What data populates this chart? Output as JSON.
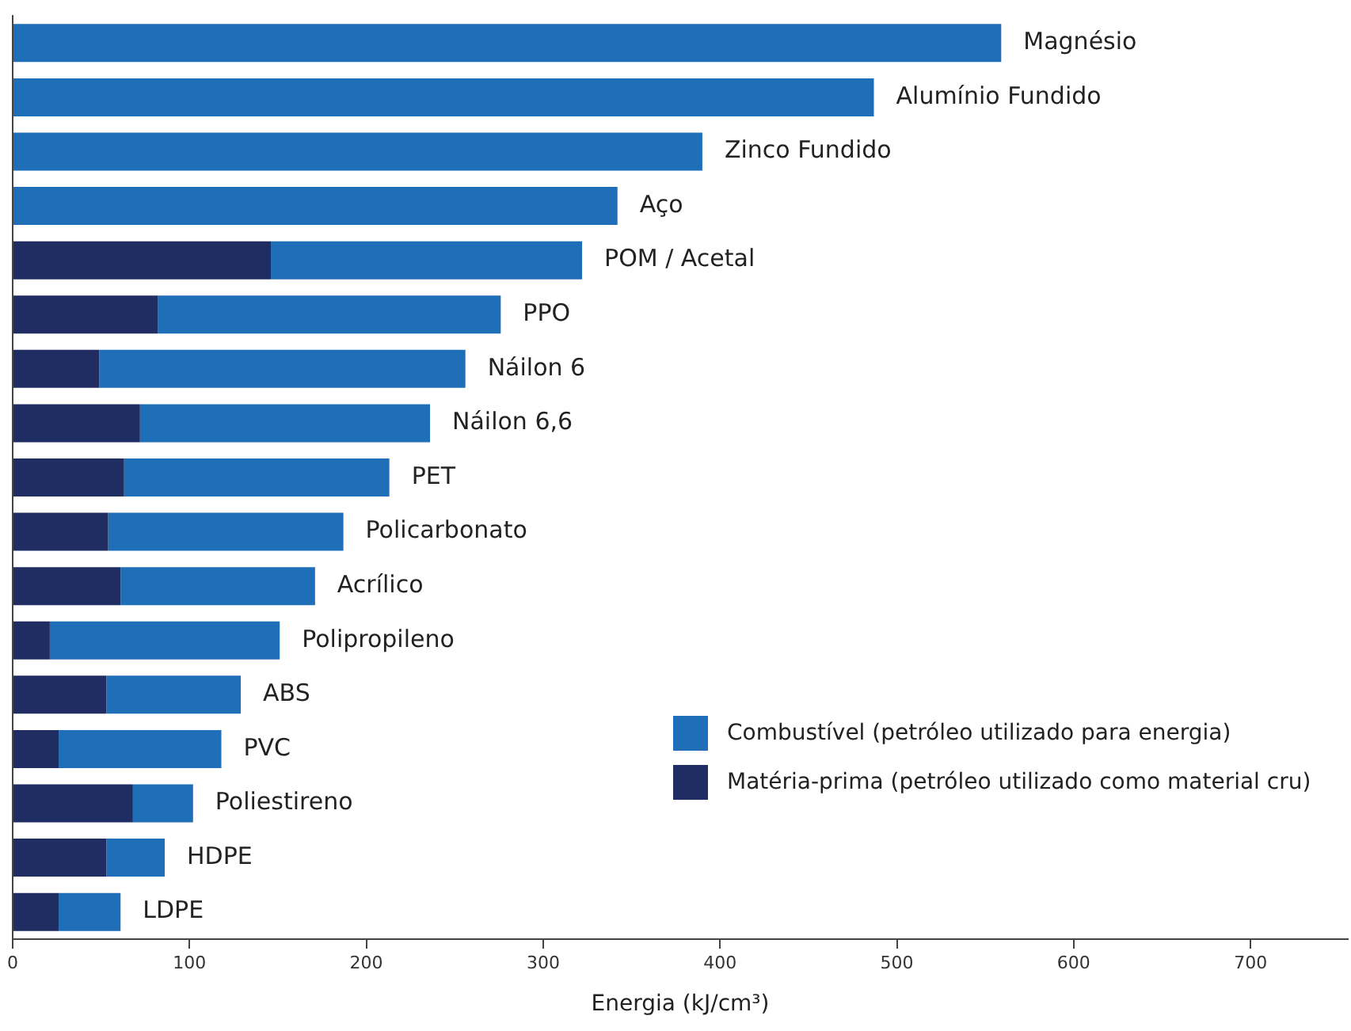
{
  "chart_data": {
    "type": "bar",
    "orientation": "horizontal",
    "stacked": true,
    "xlabel": "Energia (kJ/cm³)",
    "categories": [
      "Magnésio",
      "Alumínio Fundido",
      "Zinco Fundido",
      "Aço",
      "POM / Acetal",
      "PPO",
      "Náilon 6",
      "Náilon 6,6",
      "PET",
      "Policarbonato",
      "Acrílico",
      "Polipropileno",
      "ABS",
      "PVC",
      "Poliestireno",
      "HDPE",
      "LDPE"
    ],
    "series": [
      {
        "name": "Matéria-prima (petróleo utilizado como material cru)",
        "color": "#1f2d63",
        "values": [
          0,
          0,
          0,
          0,
          146,
          82,
          49,
          72,
          63,
          54,
          61,
          21,
          53,
          26,
          68,
          53,
          26
        ]
      },
      {
        "name": "Combustível (petróleo utilizado para energia)",
        "color": "#1f6fb8",
        "values": [
          559,
          487,
          390,
          342,
          176,
          194,
          207,
          164,
          150,
          133,
          110,
          130,
          76,
          92,
          34,
          33,
          35
        ]
      }
    ],
    "xlim": [
      0,
      755
    ],
    "xticks": [
      0,
      100,
      200,
      300,
      400,
      500,
      600,
      700
    ],
    "tick_labels": "x",
    "grid": false,
    "legend": "bottom right"
  }
}
